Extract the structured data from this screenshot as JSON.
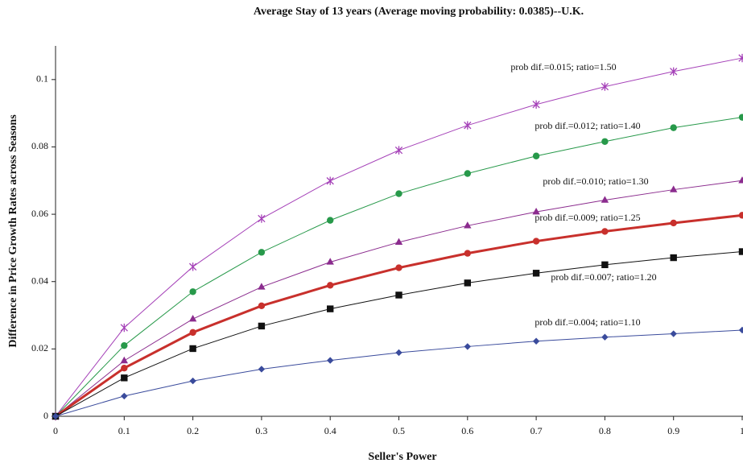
{
  "chart_data": {
    "type": "line",
    "title": "Average Stay of 13 years (Average moving probability:  0.0385)--U.K.",
    "x_label": "Seller's Power",
    "y_label": "Difference in Price Growth Rates across Seasons",
    "x": [
      0,
      0.1,
      0.2,
      0.3,
      0.4,
      0.5,
      0.6,
      0.7,
      0.8,
      0.9,
      1
    ],
    "xlim": [
      0,
      1
    ],
    "xticks": [
      0,
      0.1,
      0.2,
      0.3,
      0.4,
      0.5,
      0.6,
      0.7,
      0.8,
      0.9,
      1
    ],
    "ylim": [
      0,
      0.11
    ],
    "yticks": [
      0,
      0.02,
      0.04,
      0.06,
      0.08,
      0.1
    ],
    "grid": false,
    "series": [
      {
        "name": "prob dif.=0.015;  ratio=1.50",
        "color": "#a541b8",
        "marker": "star",
        "values": [
          0,
          0.0263,
          0.0444,
          0.0587,
          0.0699,
          0.079,
          0.0864,
          0.0926,
          0.0979,
          0.1024,
          0.1064
        ]
      },
      {
        "name": "prob dif.=0.012;  ratio=1.40",
        "color": "#27994a",
        "marker": "circle",
        "values": [
          0,
          0.021,
          0.037,
          0.0487,
          0.0582,
          0.0661,
          0.0721,
          0.0773,
          0.0816,
          0.0857,
          0.0888
        ]
      },
      {
        "name": "prob dif.=0.010;  ratio=1.30",
        "color": "#8b2c8e",
        "marker": "triangle",
        "values": [
          0,
          0.0165,
          0.0289,
          0.0384,
          0.0458,
          0.0517,
          0.0566,
          0.0607,
          0.0642,
          0.0673,
          0.07
        ]
      },
      {
        "name": "prob dif.=0.009;  ratio=1.25",
        "color": "#c8302c",
        "marker": "circle",
        "values": [
          0,
          0.0143,
          0.0249,
          0.0328,
          0.0389,
          0.0441,
          0.0484,
          0.052,
          0.0549,
          0.0574,
          0.0597
        ]
      },
      {
        "name": "prob dif.=0.007;  ratio=1.20",
        "color": "#111111",
        "marker": "square",
        "values": [
          0,
          0.0114,
          0.0201,
          0.0268,
          0.0319,
          0.036,
          0.0396,
          0.0425,
          0.045,
          0.0471,
          0.0489
        ]
      },
      {
        "name": "prob dif.=0.004;  ratio=1.10",
        "color": "#3a4b9c",
        "marker": "diamond",
        "values": [
          0,
          0.006,
          0.0105,
          0.014,
          0.0166,
          0.0189,
          0.0207,
          0.0223,
          0.0235,
          0.0245,
          0.0256
        ]
      }
    ]
  }
}
